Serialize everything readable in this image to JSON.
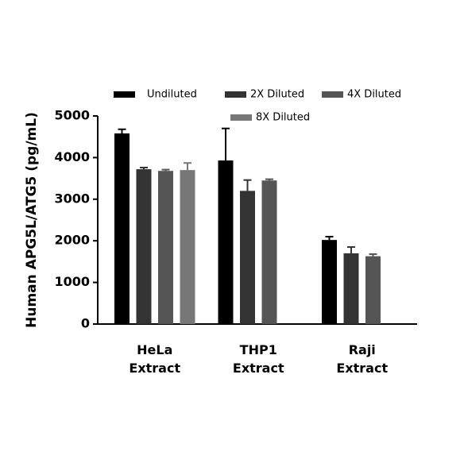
{
  "chart_data": {
    "type": "bar",
    "y_label": "Human APG5L/ATG5 (pg/mL)",
    "categories": [
      "HeLa Extract",
      "THP1 Extract",
      "Raji Extract"
    ],
    "series": [
      {
        "name": "Undiluted",
        "color": "#000000",
        "values": [
          4580,
          3930,
          2020
        ],
        "errors": [
          100,
          770,
          80
        ]
      },
      {
        "name": "2X Diluted",
        "color": "#333333",
        "values": [
          3720,
          3200,
          1700
        ],
        "errors": [
          40,
          260,
          150
        ]
      },
      {
        "name": "4X Diluted",
        "color": "#555555",
        "values": [
          3680,
          3450,
          1630
        ],
        "errors": [
          30,
          30,
          50
        ]
      },
      {
        "name": "8X Diluted",
        "color": "#777777",
        "values": [
          3700,
          null,
          null
        ],
        "errors": [
          170,
          null,
          null
        ]
      }
    ],
    "ylim": [
      0,
      5000
    ],
    "yticks": [
      0,
      1000,
      2000,
      3000,
      4000,
      5000
    ]
  }
}
